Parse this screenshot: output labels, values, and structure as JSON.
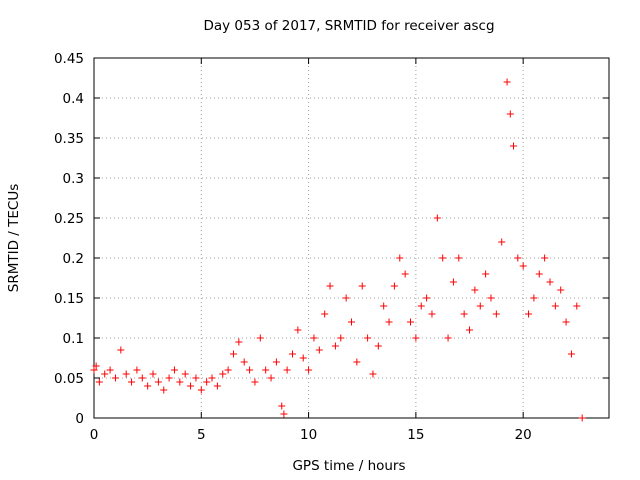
{
  "chart_data": {
    "type": "scatter",
    "title": "Day 053 of 2017, SRMTID for receiver ascg",
    "xlabel": "GPS time / hours",
    "ylabel": "SRMTID / TECUs",
    "xlim": [
      0,
      24
    ],
    "ylim": [
      0,
      0.45
    ],
    "x_ticks": [
      0,
      5,
      10,
      15,
      20
    ],
    "x_tick_labels": [
      "0",
      "5",
      "10",
      "15",
      "20"
    ],
    "y_ticks": [
      0,
      0.05,
      0.1,
      0.15,
      0.2,
      0.25,
      0.3,
      0.35,
      0.4,
      0.45
    ],
    "y_tick_labels": [
      "0",
      "0.05",
      "0.1",
      "0.15",
      "0.2",
      "0.25",
      "0.3",
      "0.35",
      "0.4",
      "0.45"
    ],
    "grid": true,
    "marker": "+",
    "marker_color": "#ff0000",
    "series": [
      {
        "name": "SRMTID",
        "x": [
          0.0,
          0.1,
          0.25,
          0.5,
          0.75,
          1.0,
          1.25,
          1.5,
          1.75,
          2.0,
          2.25,
          2.5,
          2.75,
          3.0,
          3.25,
          3.5,
          3.75,
          4.0,
          4.25,
          4.5,
          4.75,
          5.0,
          5.25,
          5.5,
          5.75,
          6.0,
          6.25,
          6.5,
          6.75,
          7.0,
          7.25,
          7.5,
          7.75,
          8.0,
          8.25,
          8.5,
          8.75,
          8.85,
          9.0,
          9.25,
          9.5,
          9.75,
          10.0,
          10.25,
          10.5,
          10.75,
          11.0,
          11.25,
          11.5,
          11.75,
          12.0,
          12.25,
          12.5,
          12.75,
          13.0,
          13.25,
          13.5,
          13.75,
          14.0,
          14.25,
          14.5,
          14.75,
          15.0,
          15.25,
          15.5,
          15.75,
          16.0,
          16.25,
          16.5,
          16.75,
          17.0,
          17.25,
          17.5,
          17.75,
          18.0,
          18.25,
          18.5,
          18.75,
          19.0,
          19.25,
          19.4,
          19.55,
          19.75,
          20.0,
          20.25,
          20.5,
          20.75,
          21.0,
          21.25,
          21.5,
          21.75,
          22.0,
          22.25,
          22.5,
          22.75
        ],
        "y": [
          0.06,
          0.065,
          0.045,
          0.055,
          0.06,
          0.05,
          0.085,
          0.055,
          0.045,
          0.06,
          0.05,
          0.04,
          0.055,
          0.045,
          0.035,
          0.05,
          0.06,
          0.045,
          0.055,
          0.04,
          0.05,
          0.035,
          0.045,
          0.05,
          0.04,
          0.055,
          0.06,
          0.08,
          0.095,
          0.07,
          0.06,
          0.045,
          0.1,
          0.06,
          0.05,
          0.07,
          0.015,
          0.005,
          0.06,
          0.08,
          0.11,
          0.075,
          0.06,
          0.1,
          0.085,
          0.13,
          0.165,
          0.09,
          0.1,
          0.15,
          0.12,
          0.07,
          0.165,
          0.1,
          0.055,
          0.09,
          0.14,
          0.12,
          0.165,
          0.2,
          0.18,
          0.12,
          0.1,
          0.14,
          0.15,
          0.13,
          0.25,
          0.2,
          0.1,
          0.17,
          0.2,
          0.13,
          0.11,
          0.16,
          0.14,
          0.18,
          0.15,
          0.13,
          0.22,
          0.42,
          0.38,
          0.34,
          0.2,
          0.19,
          0.13,
          0.15,
          0.18,
          0.2,
          0.17,
          0.14,
          0.16,
          0.12,
          0.08,
          0.14,
          0.0
        ]
      }
    ]
  }
}
